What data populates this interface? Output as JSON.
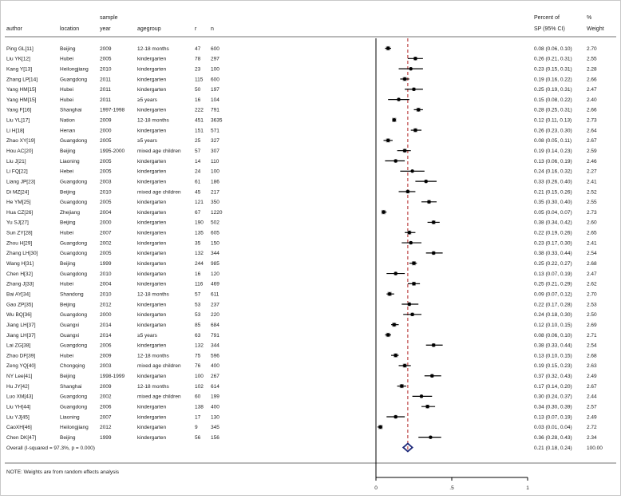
{
  "chart_data": {
    "type": "forest",
    "columns": {
      "author": "author",
      "location": "location",
      "year_top": "sample",
      "year_bottom": "year",
      "agegroup": "agegroup",
      "r": "r",
      "n": "n",
      "sp_top": "Percent of",
      "sp_bottom": "SP (95% CI)",
      "weight_top": "%",
      "weight_bottom": "Weight"
    },
    "xlim": [
      0,
      1
    ],
    "x_ticks": [
      {
        "value": 0,
        "label": "0"
      },
      {
        "value": 0.5,
        "label": ".5"
      },
      {
        "value": 1,
        "label": "1"
      }
    ],
    "null_line": 0,
    "overall_line": 0.21,
    "studies": [
      {
        "author": "Ping GL[11]",
        "location": "Beijing",
        "year": "2009",
        "agegroup": "12-18 months",
        "r": "47",
        "n": "600",
        "est": 0.08,
        "lo": 0.06,
        "hi": 0.1,
        "ci": "0.08 (0.06, 0.10)",
        "weight": "2.70"
      },
      {
        "author": "Liu YK[12]",
        "location": "Hubei",
        "year": "2005",
        "agegroup": "kindergarten",
        "r": "78",
        "n": "297",
        "est": 0.26,
        "lo": 0.21,
        "hi": 0.31,
        "ci": "0.26 (0.21, 0.31)",
        "weight": "2.55"
      },
      {
        "author": "Kang Y[13]",
        "location": "Heilongjiang",
        "year": "2010",
        "agegroup": "kindergarten",
        "r": "23",
        "n": "100",
        "est": 0.23,
        "lo": 0.15,
        "hi": 0.31,
        "ci": "0.23 (0.15, 0.31)",
        "weight": "2.28"
      },
      {
        "author": "Zhang LP[14]",
        "location": "Guangdong",
        "year": "2011",
        "agegroup": "kindergarten",
        "r": "115",
        "n": "600",
        "est": 0.19,
        "lo": 0.16,
        "hi": 0.22,
        "ci": "0.19 (0.16, 0.22)",
        "weight": "2.66"
      },
      {
        "author": "Yang HM[15]",
        "location": "Hubei",
        "year": "2011",
        "agegroup": "kindergarten",
        "r": "50",
        "n": "197",
        "est": 0.25,
        "lo": 0.19,
        "hi": 0.31,
        "ci": "0.25 (0.19, 0.31)",
        "weight": "2.47"
      },
      {
        "author": "Yang HM[15]",
        "location": "Hubei",
        "year": "2011",
        "agegroup": "≥5 years",
        "r": "16",
        "n": "104",
        "est": 0.15,
        "lo": 0.08,
        "hi": 0.22,
        "ci": "0.15 (0.08, 0.22)",
        "weight": "2.40"
      },
      {
        "author": "Yang F[16]",
        "location": "Shanghai",
        "year": "1997-1998",
        "agegroup": "kindergarten",
        "r": "222",
        "n": "791",
        "est": 0.28,
        "lo": 0.25,
        "hi": 0.31,
        "ci": "0.28 (0.25, 0.31)",
        "weight": "2.66"
      },
      {
        "author": "Liu YL[17]",
        "location": "Nation",
        "year": "2009",
        "agegroup": "12-18 months",
        "r": "451",
        "n": "3635",
        "est": 0.12,
        "lo": 0.11,
        "hi": 0.13,
        "ci": "0.12 (0.11, 0.13)",
        "weight": "2.73"
      },
      {
        "author": "Li H[18]",
        "location": "Henan",
        "year": "2000",
        "agegroup": "kindergarten",
        "r": "151",
        "n": "571",
        "est": 0.26,
        "lo": 0.23,
        "hi": 0.3,
        "ci": "0.26 (0.23, 0.30)",
        "weight": "2.64"
      },
      {
        "author": "Zhao XY[19]",
        "location": "Guangdong",
        "year": "2005",
        "agegroup": "≥5 years",
        "r": "25",
        "n": "327",
        "est": 0.08,
        "lo": 0.05,
        "hi": 0.11,
        "ci": "0.08 (0.05, 0.11)",
        "weight": "2.67"
      },
      {
        "author": "Hou AC[20]",
        "location": "Beijing",
        "year": "1995-2000",
        "agegroup": "mixed age children",
        "r": "57",
        "n": "307",
        "est": 0.19,
        "lo": 0.14,
        "hi": 0.23,
        "ci": "0.19 (0.14, 0.23)",
        "weight": "2.59"
      },
      {
        "author": "Liu J[21]",
        "location": "Liaoning",
        "year": "2005",
        "agegroup": "kindergarten",
        "r": "14",
        "n": "110",
        "est": 0.13,
        "lo": 0.06,
        "hi": 0.19,
        "ci": "0.13 (0.06, 0.19)",
        "weight": "2.46"
      },
      {
        "author": "Li FQ[22]",
        "location": "Hebei",
        "year": "2005",
        "agegroup": "kindergarten",
        "r": "24",
        "n": "100",
        "est": 0.24,
        "lo": 0.16,
        "hi": 0.32,
        "ci": "0.24 (0.16, 0.32)",
        "weight": "2.27"
      },
      {
        "author": "Liang JP[23]",
        "location": "Guangdong",
        "year": "2003",
        "agegroup": "kindergarten",
        "r": "61",
        "n": "186",
        "est": 0.33,
        "lo": 0.26,
        "hi": 0.4,
        "ci": "0.33 (0.26, 0.40)",
        "weight": "2.41"
      },
      {
        "author": "Di MZ[24]",
        "location": "Beijing",
        "year": "2010",
        "agegroup": "mixed age children",
        "r": "45",
        "n": "217",
        "est": 0.21,
        "lo": 0.15,
        "hi": 0.26,
        "ci": "0.21 (0.15, 0.26)",
        "weight": "2.52"
      },
      {
        "author": "He YM[25]",
        "location": "Guangdong",
        "year": "2005",
        "agegroup": "kindergarten",
        "r": "121",
        "n": "350",
        "est": 0.35,
        "lo": 0.3,
        "hi": 0.4,
        "ci": "0.35 (0.30, 0.40)",
        "weight": "2.55"
      },
      {
        "author": "Hua CZ[26]",
        "location": "Zhejiang",
        "year": "2004",
        "agegroup": "kindergarten",
        "r": "67",
        "n": "1220",
        "est": 0.05,
        "lo": 0.04,
        "hi": 0.07,
        "ci": "0.05 (0.04, 0.07)",
        "weight": "2.73"
      },
      {
        "author": "Yu SJ[27]",
        "location": "Beijing",
        "year": "2000",
        "agegroup": "kindergarten",
        "r": "190",
        "n": "502",
        "est": 0.38,
        "lo": 0.34,
        "hi": 0.42,
        "ci": "0.38 (0.34, 0.42)",
        "weight": "2.60"
      },
      {
        "author": "Sun ZY[28]",
        "location": "Hubei",
        "year": "2007",
        "agegroup": "kindergarten",
        "r": "135",
        "n": "605",
        "est": 0.22,
        "lo": 0.19,
        "hi": 0.26,
        "ci": "0.22 (0.19, 0.26)",
        "weight": "2.65"
      },
      {
        "author": "Zhou H[29]",
        "location": "Guangdong",
        "year": "2002",
        "agegroup": "kindergarten",
        "r": "35",
        "n": "150",
        "est": 0.23,
        "lo": 0.17,
        "hi": 0.3,
        "ci": "0.23 (0.17, 0.30)",
        "weight": "2.41"
      },
      {
        "author": "Zhang LH[30]",
        "location": "Guangdong",
        "year": "2005",
        "agegroup": "kindergarten",
        "r": "132",
        "n": "344",
        "est": 0.38,
        "lo": 0.33,
        "hi": 0.44,
        "ci": "0.38 (0.33, 0.44)",
        "weight": "2.54"
      },
      {
        "author": "Wang H[31]",
        "location": "Beijing",
        "year": "1999",
        "agegroup": "kindergarten",
        "r": "244",
        "n": "985",
        "est": 0.25,
        "lo": 0.22,
        "hi": 0.27,
        "ci": "0.25 (0.22, 0.27)",
        "weight": "2.68"
      },
      {
        "author": "Chen H[32]",
        "location": "Guangdong",
        "year": "2010",
        "agegroup": "kindergarten",
        "r": "16",
        "n": "120",
        "est": 0.13,
        "lo": 0.07,
        "hi": 0.19,
        "ci": "0.13 (0.07, 0.19)",
        "weight": "2.47"
      },
      {
        "author": "Zhang J[33]",
        "location": "Hubei",
        "year": "2004",
        "agegroup": "kindergarten",
        "r": "116",
        "n": "469",
        "est": 0.25,
        "lo": 0.21,
        "hi": 0.29,
        "ci": "0.25 (0.21, 0.29)",
        "weight": "2.62"
      },
      {
        "author": "Bai AY[34]",
        "location": "Shandong",
        "year": "2010",
        "agegroup": "12-18 months",
        "r": "57",
        "n": "611",
        "est": 0.09,
        "lo": 0.07,
        "hi": 0.12,
        "ci": "0.09 (0.07, 0.12)",
        "weight": "2.70"
      },
      {
        "author": "Gao ZP[35]",
        "location": "Beijing",
        "year": "2012",
        "agegroup": "kindergarten",
        "r": "53",
        "n": "237",
        "est": 0.22,
        "lo": 0.17,
        "hi": 0.28,
        "ci": "0.22 (0.17, 0.28)",
        "weight": "2.53"
      },
      {
        "author": "Wu BQ[36]",
        "location": "Guangdong",
        "year": "2000",
        "agegroup": "kindergarten",
        "r": "53",
        "n": "220",
        "est": 0.24,
        "lo": 0.18,
        "hi": 0.3,
        "ci": "0.24 (0.18, 0.30)",
        "weight": "2.50"
      },
      {
        "author": "Jiang LH[37]",
        "location": "Guangxi",
        "year": "2014",
        "agegroup": "kindergarten",
        "r": "85",
        "n": "684",
        "est": 0.12,
        "lo": 0.1,
        "hi": 0.15,
        "ci": "0.12 (0.10, 0.15)",
        "weight": "2.69"
      },
      {
        "author": "Jiang LH[37]",
        "location": "Guangxi",
        "year": "2014",
        "agegroup": "≥5 years",
        "r": "63",
        "n": "791",
        "est": 0.08,
        "lo": 0.06,
        "hi": 0.1,
        "ci": "0.08 (0.06, 0.10)",
        "weight": "2.71"
      },
      {
        "author": "Lai ZG[38]",
        "location": "Guangdong",
        "year": "2006",
        "agegroup": "kindergarten",
        "r": "132",
        "n": "344",
        "est": 0.38,
        "lo": 0.33,
        "hi": 0.44,
        "ci": "0.38 (0.33, 0.44)",
        "weight": "2.54"
      },
      {
        "author": "Zhao DF[39]",
        "location": "Hubei",
        "year": "2009",
        "agegroup": "12-18 months",
        "r": "75",
        "n": "596",
        "est": 0.13,
        "lo": 0.1,
        "hi": 0.15,
        "ci": "0.13 (0.10, 0.15)",
        "weight": "2.68"
      },
      {
        "author": "Zeng YQ[40]",
        "location": "Chongqing",
        "year": "2003",
        "agegroup": "mixed age children",
        "r": "76",
        "n": "400",
        "est": 0.19,
        "lo": 0.15,
        "hi": 0.23,
        "ci": "0.19 (0.15, 0.23)",
        "weight": "2.63"
      },
      {
        "author": "NY Lee[41]",
        "location": "Beijing",
        "year": "1998-1999",
        "agegroup": "kindergarten",
        "r": "100",
        "n": "267",
        "est": 0.37,
        "lo": 0.32,
        "hi": 0.43,
        "ci": "0.37 (0.32, 0.43)",
        "weight": "2.49"
      },
      {
        "author": "Hu JY[42]",
        "location": "Shanghai",
        "year": "2009",
        "agegroup": "12-18 months",
        "r": "102",
        "n": "614",
        "est": 0.17,
        "lo": 0.14,
        "hi": 0.2,
        "ci": "0.17 (0.14, 0.20)",
        "weight": "2.67"
      },
      {
        "author": "Luo XM[43]",
        "location": "Guangdong",
        "year": "2002",
        "agegroup": "mixed age children",
        "r": "60",
        "n": "199",
        "est": 0.3,
        "lo": 0.24,
        "hi": 0.37,
        "ci": "0.30 (0.24, 0.37)",
        "weight": "2.44"
      },
      {
        "author": "Liu YH[44]",
        "location": "Guangdong",
        "year": "2006",
        "agegroup": "kindergarten",
        "r": "138",
        "n": "400",
        "est": 0.34,
        "lo": 0.3,
        "hi": 0.39,
        "ci": "0.34 (0.30, 0.39)",
        "weight": "2.57"
      },
      {
        "author": "Liu YJ[45]",
        "location": "Liaoning",
        "year": "2007",
        "agegroup": "kindergarten",
        "r": "17",
        "n": "130",
        "est": 0.13,
        "lo": 0.07,
        "hi": 0.19,
        "ci": "0.13 (0.07, 0.19)",
        "weight": "2.49"
      },
      {
        "author": "CaoXH[46]",
        "location": "Heilongjiang",
        "year": "2012",
        "agegroup": "kindergarten",
        "r": "9",
        "n": "345",
        "est": 0.03,
        "lo": 0.01,
        "hi": 0.04,
        "ci": "0.03 (0.01, 0.04)",
        "weight": "2.72"
      },
      {
        "author": "Chen DK[47]",
        "location": "Beijing",
        "year": "1999",
        "agegroup": "kindergarten",
        "r": "56",
        "n": "156",
        "est": 0.36,
        "lo": 0.28,
        "hi": 0.43,
        "ci": "0.36 (0.28, 0.43)",
        "weight": "2.34"
      }
    ],
    "overall": {
      "label": "Overall  (I-squared = 97.3%, p = 0.000)",
      "est": 0.21,
      "lo": 0.18,
      "hi": 0.24,
      "ci": "0.21 (0.18, 0.24)",
      "weight": "100.00"
    },
    "note": "NOTE: Weights are from random effects analysis",
    "colors": {
      "marker": "#000000",
      "weight_box": "#9a9a9a",
      "overall_line": "#b22222",
      "diamond": "#1f2a7a"
    }
  }
}
